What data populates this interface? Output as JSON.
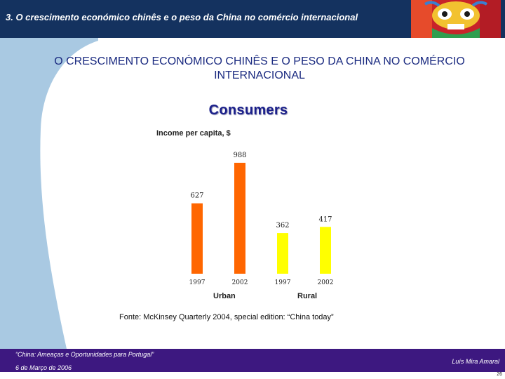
{
  "header": {
    "title": "3. O crescimento económico chinês e o peso da China no comércio internacional",
    "image_icon": "chinese-lion-mask"
  },
  "main_title": "O CRESCIMENTO ECONÓMICO CHINÊS E O PESO DA CHINA NO COMÉRCIO INTERNACIONAL",
  "section_title": "Consumers",
  "chart_data": {
    "type": "bar",
    "title": "Income per capita, $",
    "groups": [
      "Urban",
      "Rural"
    ],
    "categories": [
      "1997",
      "2002",
      "1997",
      "2002"
    ],
    "values": [
      627,
      988,
      362,
      417
    ],
    "colors": [
      "#ff6600",
      "#ff6600",
      "#ffff00",
      "#ffff00"
    ],
    "ylim": [
      0,
      1000
    ],
    "grid": false
  },
  "source": "Fonte: McKinsey Quarterly 2004, special edition: “China today”",
  "footer": {
    "left": "“China: Ameaças e Oportunidades para Portugal”",
    "date": "6 de Março de 2006",
    "right": "Luís Mira Amaral",
    "page": "26"
  },
  "colors": {
    "header_bg": "#14325f",
    "footer_bg": "#3d1880",
    "title_text": "#1a2a80"
  }
}
